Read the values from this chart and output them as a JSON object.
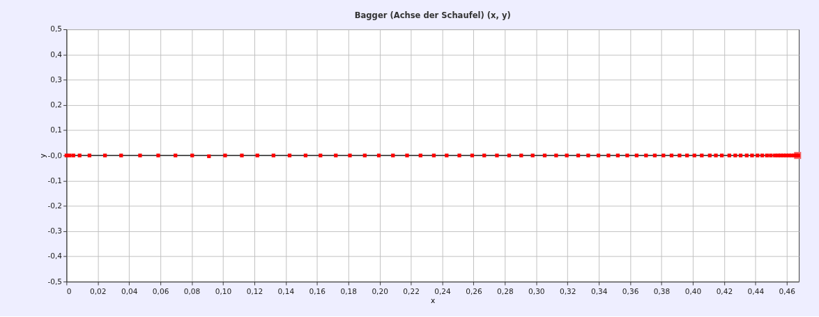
{
  "chart_data": {
    "type": "scatter",
    "title": "Bagger (Achse der Schaufel) (x, y)",
    "xlabel": "x",
    "ylabel": "y",
    "x": [
      0,
      0.002,
      0.0044,
      0.0084,
      0.0147,
      0.0246,
      0.0349,
      0.047,
      0.0586,
      0.0696,
      0.0803,
      0.091,
      0.1013,
      0.112,
      0.1219,
      0.1322,
      0.1425,
      0.1527,
      0.1622,
      0.172,
      0.181,
      0.1905,
      0.1995,
      0.2085,
      0.2175,
      0.2261,
      0.2346,
      0.2428,
      0.2509,
      0.2591,
      0.2668,
      0.2749,
      0.2827,
      0.2904,
      0.2977,
      0.3054,
      0.3127,
      0.3195,
      0.3268,
      0.3332,
      0.3397,
      0.3461,
      0.3521,
      0.3581,
      0.3641,
      0.3701,
      0.3757,
      0.3812,
      0.3864,
      0.3915,
      0.3963,
      0.401,
      0.4057,
      0.4108,
      0.4147,
      0.4185,
      0.4233,
      0.4271,
      0.4305,
      0.4344,
      0.4378,
      0.4413,
      0.4443,
      0.4473,
      0.4498,
      0.4524,
      0.4544,
      0.4561,
      0.4579,
      0.4596,
      0.4613,
      0.463,
      0.4647,
      0.466,
      0.4673
    ],
    "series": [
      {
        "color": "#ff0000",
        "values": [
          0,
          0,
          0,
          0,
          0,
          0,
          0,
          0,
          0,
          0,
          0,
          -0.003,
          0,
          0,
          0,
          0,
          0,
          0,
          0,
          0,
          0,
          0,
          0,
          0,
          0,
          0,
          0,
          0,
          0,
          0,
          0,
          0,
          0,
          0,
          0,
          0,
          0,
          0,
          0,
          0,
          0,
          0,
          0,
          0,
          0,
          0,
          0,
          0,
          0,
          0,
          0,
          0,
          0,
          0,
          0,
          0,
          0,
          0,
          0,
          0,
          0,
          0,
          0,
          0,
          0,
          0,
          0,
          0,
          0,
          0,
          0,
          0,
          0,
          0,
          0
        ]
      },
      {
        "color": "#f46868",
        "x": [
          0.4669
        ],
        "values": [
          0
        ]
      }
    ],
    "marker": "square",
    "ref_lines": [
      {
        "axis": "y",
        "value": 0,
        "color": "#000000"
      }
    ],
    "xlim": [
      0,
      0.4677
    ],
    "xticks": [
      0,
      {
        "value": 0.02,
        "label": "0,02"
      },
      {
        "value": 0.04,
        "label": "0,04"
      },
      {
        "value": 0.06,
        "label": "0,06"
      },
      {
        "value": 0.08,
        "label": "0,08"
      },
      {
        "value": 0.1,
        "label": "0,10"
      },
      {
        "value": 0.12,
        "label": "0,12"
      },
      {
        "value": 0.14,
        "label": "0,14"
      },
      {
        "value": 0.16,
        "label": "0,16"
      },
      {
        "value": 0.18,
        "label": "0,18"
      },
      {
        "value": 0.2,
        "label": "0,20"
      },
      {
        "value": 0.22,
        "label": "0,22"
      },
      {
        "value": 0.24,
        "label": "0,24"
      },
      {
        "value": 0.26,
        "label": "0,26"
      },
      {
        "value": 0.28,
        "label": "0,28"
      },
      {
        "value": 0.3,
        "label": "0,30"
      },
      {
        "value": 0.32,
        "label": "0,32"
      },
      {
        "value": 0.34,
        "label": "0,34"
      },
      {
        "value": 0.36,
        "label": "0,36"
      },
      {
        "value": 0.38,
        "label": "0,38"
      },
      {
        "value": 0.4,
        "label": "0,40"
      },
      {
        "value": 0.42,
        "label": "0,42"
      },
      {
        "value": 0.44,
        "label": "0,44"
      },
      {
        "value": 0.46,
        "label": "0,46"
      }
    ],
    "ylim": [
      -0.5,
      0.5
    ],
    "yticks": [
      {
        "value": 0.5,
        "label": "0,5"
      },
      {
        "value": 0.4,
        "label": "0,4"
      },
      {
        "value": 0.3,
        "label": "0,3"
      },
      {
        "value": 0.2,
        "label": "0,2"
      },
      {
        "value": 0.1,
        "label": "0,1"
      },
      {
        "value": 0,
        "label": "-0,0"
      },
      {
        "value": -0.1,
        "label": "-0,1"
      },
      {
        "value": -0.2,
        "label": "-0,2"
      },
      {
        "value": -0.3,
        "label": "-0,3"
      },
      {
        "value": -0.4,
        "label": "-0,4"
      },
      {
        "value": -0.5,
        "label": "-0,5"
      }
    ],
    "grid": true
  }
}
